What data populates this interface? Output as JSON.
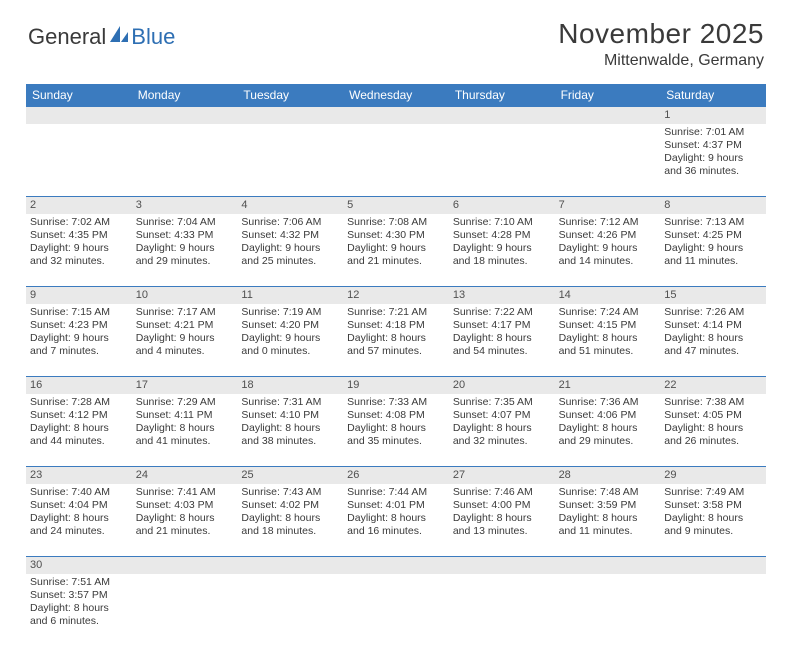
{
  "brand": {
    "part1": "General",
    "part2": "Blue"
  },
  "title": "November 2025",
  "location": "Mittenwalde, Germany",
  "colors": {
    "header_bg": "#3b7bbf",
    "header_text": "#ffffff",
    "daynum_bg": "#e9e9e9",
    "text": "#3a3a3a",
    "rule": "#3b7bbf"
  },
  "day_labels": [
    "Sunday",
    "Monday",
    "Tuesday",
    "Wednesday",
    "Thursday",
    "Friday",
    "Saturday"
  ],
  "weeks": [
    [
      null,
      null,
      null,
      null,
      null,
      null,
      {
        "n": "1",
        "sunrise": "7:01 AM",
        "sunset": "4:37 PM",
        "day_h": 9,
        "day_m": 36
      }
    ],
    [
      {
        "n": "2",
        "sunrise": "7:02 AM",
        "sunset": "4:35 PM",
        "day_h": 9,
        "day_m": 32
      },
      {
        "n": "3",
        "sunrise": "7:04 AM",
        "sunset": "4:33 PM",
        "day_h": 9,
        "day_m": 29
      },
      {
        "n": "4",
        "sunrise": "7:06 AM",
        "sunset": "4:32 PM",
        "day_h": 9,
        "day_m": 25
      },
      {
        "n": "5",
        "sunrise": "7:08 AM",
        "sunset": "4:30 PM",
        "day_h": 9,
        "day_m": 21
      },
      {
        "n": "6",
        "sunrise": "7:10 AM",
        "sunset": "4:28 PM",
        "day_h": 9,
        "day_m": 18
      },
      {
        "n": "7",
        "sunrise": "7:12 AM",
        "sunset": "4:26 PM",
        "day_h": 9,
        "day_m": 14
      },
      {
        "n": "8",
        "sunrise": "7:13 AM",
        "sunset": "4:25 PM",
        "day_h": 9,
        "day_m": 11
      }
    ],
    [
      {
        "n": "9",
        "sunrise": "7:15 AM",
        "sunset": "4:23 PM",
        "day_h": 9,
        "day_m": 7
      },
      {
        "n": "10",
        "sunrise": "7:17 AM",
        "sunset": "4:21 PM",
        "day_h": 9,
        "day_m": 4
      },
      {
        "n": "11",
        "sunrise": "7:19 AM",
        "sunset": "4:20 PM",
        "day_h": 9,
        "day_m": 0
      },
      {
        "n": "12",
        "sunrise": "7:21 AM",
        "sunset": "4:18 PM",
        "day_h": 8,
        "day_m": 57
      },
      {
        "n": "13",
        "sunrise": "7:22 AM",
        "sunset": "4:17 PM",
        "day_h": 8,
        "day_m": 54
      },
      {
        "n": "14",
        "sunrise": "7:24 AM",
        "sunset": "4:15 PM",
        "day_h": 8,
        "day_m": 51
      },
      {
        "n": "15",
        "sunrise": "7:26 AM",
        "sunset": "4:14 PM",
        "day_h": 8,
        "day_m": 47
      }
    ],
    [
      {
        "n": "16",
        "sunrise": "7:28 AM",
        "sunset": "4:12 PM",
        "day_h": 8,
        "day_m": 44
      },
      {
        "n": "17",
        "sunrise": "7:29 AM",
        "sunset": "4:11 PM",
        "day_h": 8,
        "day_m": 41
      },
      {
        "n": "18",
        "sunrise": "7:31 AM",
        "sunset": "4:10 PM",
        "day_h": 8,
        "day_m": 38
      },
      {
        "n": "19",
        "sunrise": "7:33 AM",
        "sunset": "4:08 PM",
        "day_h": 8,
        "day_m": 35
      },
      {
        "n": "20",
        "sunrise": "7:35 AM",
        "sunset": "4:07 PM",
        "day_h": 8,
        "day_m": 32
      },
      {
        "n": "21",
        "sunrise": "7:36 AM",
        "sunset": "4:06 PM",
        "day_h": 8,
        "day_m": 29
      },
      {
        "n": "22",
        "sunrise": "7:38 AM",
        "sunset": "4:05 PM",
        "day_h": 8,
        "day_m": 26
      }
    ],
    [
      {
        "n": "23",
        "sunrise": "7:40 AM",
        "sunset": "4:04 PM",
        "day_h": 8,
        "day_m": 24
      },
      {
        "n": "24",
        "sunrise": "7:41 AM",
        "sunset": "4:03 PM",
        "day_h": 8,
        "day_m": 21
      },
      {
        "n": "25",
        "sunrise": "7:43 AM",
        "sunset": "4:02 PM",
        "day_h": 8,
        "day_m": 18
      },
      {
        "n": "26",
        "sunrise": "7:44 AM",
        "sunset": "4:01 PM",
        "day_h": 8,
        "day_m": 16
      },
      {
        "n": "27",
        "sunrise": "7:46 AM",
        "sunset": "4:00 PM",
        "day_h": 8,
        "day_m": 13
      },
      {
        "n": "28",
        "sunrise": "7:48 AM",
        "sunset": "3:59 PM",
        "day_h": 8,
        "day_m": 11
      },
      {
        "n": "29",
        "sunrise": "7:49 AM",
        "sunset": "3:58 PM",
        "day_h": 8,
        "day_m": 9
      }
    ],
    [
      {
        "n": "30",
        "sunrise": "7:51 AM",
        "sunset": "3:57 PM",
        "day_h": 8,
        "day_m": 6
      },
      null,
      null,
      null,
      null,
      null,
      null
    ]
  ]
}
